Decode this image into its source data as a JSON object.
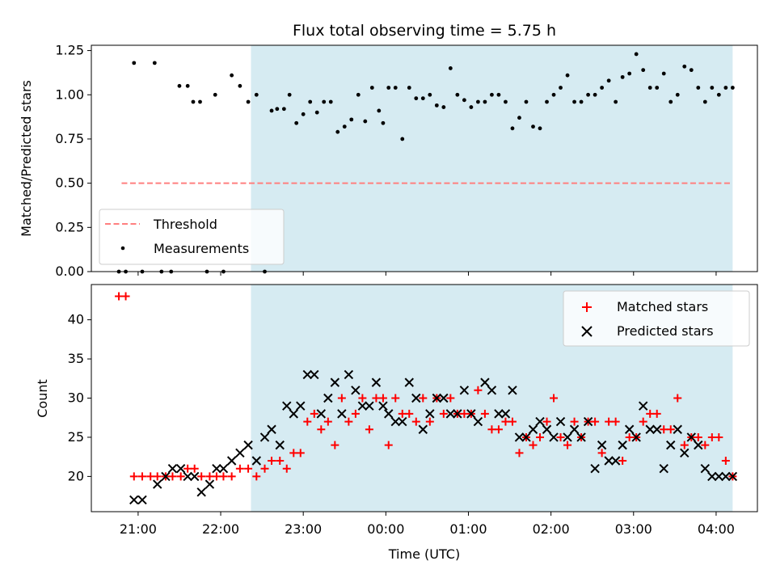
{
  "chart_data": [
    {
      "type": "scatter",
      "title": "Flux total observing time = 5.75 h",
      "ylabel": "Matched/Predicted stars",
      "xlim": [
        "20:26",
        "04:30"
      ],
      "ylim": [
        0,
        1.28
      ],
      "yticks": [
        "0.00",
        "0.25",
        "0.50",
        "0.75",
        "1.00",
        "1.25"
      ],
      "highlight_span": [
        "22:22",
        "04:12"
      ],
      "highlight_color": "#add8e6",
      "threshold": {
        "name": "Threshold",
        "value": 0.5,
        "x_range": [
          "20:48",
          "04:12"
        ],
        "color": "#ff7f7f"
      },
      "legend": {
        "placement": "lower-left",
        "entries": [
          "Threshold",
          "Measurements"
        ]
      },
      "series": [
        {
          "name": "Measurements",
          "color": "#000000",
          "x": [
            "20:46",
            "20:51",
            "20:57",
            "21:03",
            "21:12",
            "21:17",
            "21:24",
            "21:30",
            "21:36",
            "21:40",
            "21:45",
            "21:50",
            "21:56",
            "22:02",
            "22:08",
            "22:14",
            "22:20",
            "22:26",
            "22:32",
            "22:37",
            "22:41",
            "22:46",
            "22:50",
            "22:55",
            "23:00",
            "23:05",
            "23:10",
            "23:15",
            "23:20",
            "23:25",
            "23:30",
            "23:35",
            "23:40",
            "23:45",
            "23:50",
            "23:55",
            "23:58",
            "00:02",
            "00:07",
            "00:12",
            "00:17",
            "00:22",
            "00:27",
            "00:32",
            "00:37",
            "00:42",
            "00:47",
            "00:52",
            "00:57",
            "01:02",
            "01:07",
            "01:12",
            "01:17",
            "01:22",
            "01:27",
            "01:32",
            "01:37",
            "01:42",
            "01:47",
            "01:52",
            "01:57",
            "02:02",
            "02:07",
            "02:12",
            "02:17",
            "02:22",
            "02:27",
            "02:32",
            "02:37",
            "02:42",
            "02:47",
            "02:52",
            "02:57",
            "03:02",
            "03:07",
            "03:12",
            "03:17",
            "03:22",
            "03:27",
            "03:32",
            "03:37",
            "03:42",
            "03:47",
            "03:52",
            "03:57",
            "04:02",
            "04:07",
            "04:12"
          ],
          "y": [
            0.0,
            0.0,
            1.18,
            0.0,
            1.18,
            0.0,
            0.0,
            1.05,
            1.05,
            0.96,
            0.96,
            0.0,
            1.0,
            0.0,
            1.11,
            1.05,
            0.96,
            1.0,
            0.0,
            0.91,
            0.92,
            0.92,
            1.0,
            0.84,
            0.89,
            0.96,
            0.9,
            0.96,
            0.96,
            0.79,
            0.82,
            0.86,
            1.0,
            0.85,
            1.04,
            0.91,
            0.84,
            1.04,
            1.04,
            0.75,
            1.04,
            0.98,
            0.98,
            1.0,
            0.94,
            0.93,
            1.15,
            1.0,
            0.97,
            0.93,
            0.96,
            0.96,
            1.0,
            1.0,
            0.96,
            0.81,
            0.87,
            0.96,
            0.82,
            0.81,
            0.96,
            1.0,
            1.04,
            1.11,
            0.96,
            0.96,
            1.0,
            1.0,
            1.04,
            1.08,
            0.96,
            1.1,
            1.12,
            1.23,
            1.14,
            1.04,
            1.04,
            1.12,
            0.96,
            1.0,
            1.16,
            1.14,
            1.04,
            0.96,
            1.04,
            1.0,
            1.04,
            1.04
          ]
        }
      ]
    },
    {
      "type": "scatter",
      "xlabel": "Time (UTC)",
      "ylabel": "Count",
      "xlim": [
        "20:26",
        "04:30"
      ],
      "ylim": [
        15.5,
        44.5
      ],
      "yticks": [
        "20",
        "25",
        "30",
        "35",
        "40"
      ],
      "xticks": [
        "21:00",
        "22:00",
        "23:00",
        "00:00",
        "01:00",
        "02:00",
        "03:00",
        "04:00"
      ],
      "highlight_span": [
        "22:22",
        "04:12"
      ],
      "highlight_color": "#add8e6",
      "legend": {
        "placement": "top-right",
        "entries": [
          "Matched stars",
          "Predicted stars"
        ]
      },
      "series": [
        {
          "name": "Matched stars",
          "marker": "plus",
          "color": "#ff0000",
          "x": [
            "20:46",
            "20:51",
            "20:57",
            "21:03",
            "21:09",
            "21:14",
            "21:20",
            "21:25",
            "21:31",
            "21:36",
            "21:41",
            "21:46",
            "21:52",
            "21:57",
            "22:02",
            "22:08",
            "22:14",
            "22:20",
            "22:26",
            "22:32",
            "22:37",
            "22:43",
            "22:48",
            "22:53",
            "22:58",
            "23:03",
            "23:08",
            "23:13",
            "23:18",
            "23:23",
            "23:28",
            "23:33",
            "23:38",
            "23:43",
            "23:48",
            "23:53",
            "23:58",
            "00:02",
            "00:07",
            "00:12",
            "00:17",
            "00:22",
            "00:27",
            "00:32",
            "00:37",
            "00:42",
            "00:47",
            "00:52",
            "00:57",
            "01:02",
            "01:07",
            "01:12",
            "01:17",
            "01:22",
            "01:27",
            "01:32",
            "01:37",
            "01:42",
            "01:47",
            "01:52",
            "01:57",
            "02:02",
            "02:07",
            "02:12",
            "02:17",
            "02:22",
            "02:27",
            "02:32",
            "02:37",
            "02:42",
            "02:47",
            "02:52",
            "02:57",
            "03:02",
            "03:07",
            "03:12",
            "03:17",
            "03:22",
            "03:27",
            "03:32",
            "03:37",
            "03:42",
            "03:47",
            "03:52",
            "03:57",
            "04:02",
            "04:07",
            "04:12"
          ],
          "y": [
            43,
            43,
            20,
            20,
            20,
            20,
            20,
            20,
            20,
            21,
            21,
            20,
            20,
            20,
            20,
            20,
            21,
            21,
            20,
            21,
            22,
            22,
            21,
            23,
            23,
            27,
            28,
            26,
            27,
            24,
            30,
            27,
            28,
            30,
            26,
            30,
            30,
            24,
            30,
            28,
            28,
            27,
            30,
            27,
            30,
            28,
            30,
            28,
            28,
            28,
            31,
            28,
            26,
            26,
            27,
            27,
            23,
            25,
            24,
            25,
            27,
            30,
            25,
            24,
            27,
            25,
            27,
            27,
            23,
            27,
            27,
            22,
            25,
            25,
            27,
            28,
            28,
            26,
            26,
            30,
            24,
            25,
            25,
            24,
            25,
            25,
            22,
            20
          ]
        },
        {
          "name": "Predicted stars",
          "marker": "x",
          "color": "#000000",
          "x": [
            "20:46",
            "20:51",
            "20:57",
            "21:03",
            "21:09",
            "21:14",
            "21:20",
            "21:25",
            "21:31",
            "21:36",
            "21:41",
            "21:46",
            "21:52",
            "21:57",
            "22:02",
            "22:08",
            "22:14",
            "22:20",
            "22:26",
            "22:32",
            "22:37",
            "22:43",
            "22:48",
            "22:53",
            "22:58",
            "23:03",
            "23:08",
            "23:13",
            "23:18",
            "23:23",
            "23:28",
            "23:33",
            "23:38",
            "23:43",
            "23:48",
            "23:53",
            "23:58",
            "00:02",
            "00:07",
            "00:12",
            "00:17",
            "00:22",
            "00:27",
            "00:32",
            "00:37",
            "00:42",
            "00:47",
            "00:52",
            "00:57",
            "01:02",
            "01:07",
            "01:12",
            "01:17",
            "01:22",
            "01:27",
            "01:32",
            "01:37",
            "01:42",
            "01:47",
            "01:52",
            "01:57",
            "02:02",
            "02:07",
            "02:12",
            "02:17",
            "02:22",
            "02:27",
            "02:32",
            "02:37",
            "02:42",
            "02:47",
            "02:52",
            "02:57",
            "03:02",
            "03:07",
            "03:12",
            "03:17",
            "03:22",
            "03:27",
            "03:32",
            "03:37",
            "03:42",
            "03:47",
            "03:52",
            "03:57",
            "04:02",
            "04:07",
            "04:12"
          ],
          "y": [
            null,
            null,
            17,
            17,
            null,
            19,
            20,
            21,
            21,
            20,
            20,
            18,
            19,
            21,
            21,
            22,
            23,
            24,
            22,
            25,
            26,
            24,
            29,
            28,
            29,
            33,
            33,
            28,
            30,
            32,
            28,
            33,
            31,
            29,
            29,
            32,
            29,
            28,
            27,
            27,
            32,
            30,
            26,
            28,
            30,
            30,
            28,
            28,
            31,
            28,
            27,
            32,
            31,
            28,
            28,
            31,
            25,
            25,
            26,
            27,
            26,
            25,
            27,
            25,
            26,
            25,
            27,
            21,
            24,
            22,
            22,
            24,
            26,
            25,
            29,
            26,
            26,
            21,
            24,
            26,
            23,
            25,
            24,
            21,
            20,
            20,
            20,
            20
          ]
        }
      ]
    }
  ]
}
